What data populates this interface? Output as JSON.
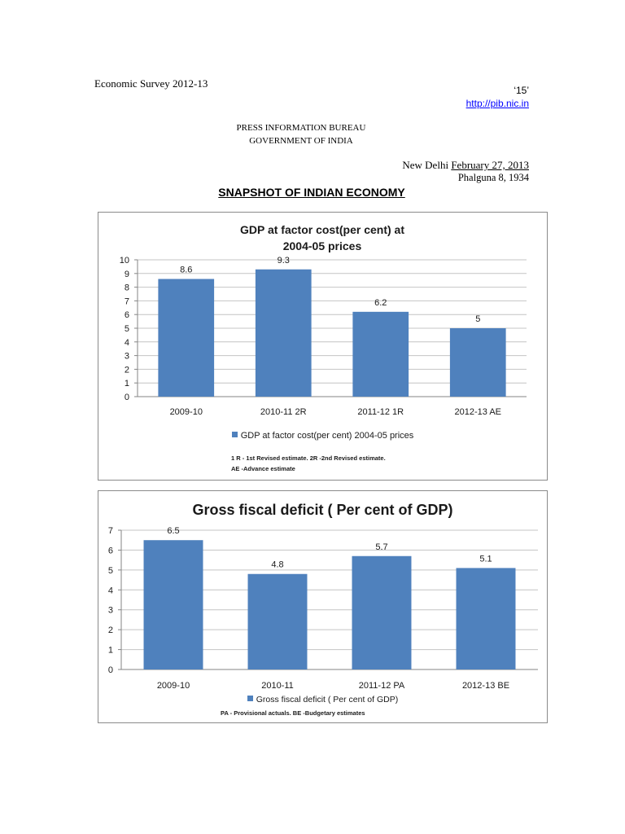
{
  "header": {
    "publication": "Economic Survey 2012-13",
    "page_code": "‘15’",
    "website": "http://pib.nic.in",
    "bureau": "PRESS INFORMATION BUREAU",
    "government": "GOVERNMENT OF INDIA",
    "place": "New Delhi",
    "date": "February 27, 2013",
    "saka_date": "Phalguna 8, 1934",
    "heading": "SNAPSHOT OF INDIAN ECONOMY"
  },
  "colors": {
    "bar": "#4F81BD",
    "link": "#0000FF"
  },
  "chart_data": [
    {
      "type": "bar",
      "title": "GDP at factor cost(per cent) at 2004-05 prices",
      "categories": [
        "2009-10",
        "2010-11 2R",
        "2011-12 1R",
        "2012-13 AE"
      ],
      "series": [
        {
          "name": "GDP at factor cost(per cent) 2004-05 prices",
          "values": [
            8.6,
            9.3,
            6.2,
            5
          ]
        }
      ],
      "ylim": [
        0,
        10
      ],
      "yticks": [
        0,
        1,
        2,
        3,
        4,
        5,
        6,
        7,
        8,
        9,
        10
      ],
      "grid": true,
      "legend": "bottom",
      "notes": [
        "1 R - 1st Revised estimate. 2R -2nd Revised estimate.",
        "AE -Advance estimate"
      ]
    },
    {
      "type": "bar",
      "title": "Gross fiscal deficit ( Per cent of GDP)",
      "categories": [
        "2009-10",
        "2010-11",
        "2011-12 PA",
        "2012-13 BE"
      ],
      "series": [
        {
          "name": "Gross fiscal deficit ( Per cent of GDP)",
          "values": [
            6.5,
            4.8,
            5.7,
            5.1
          ]
        }
      ],
      "ylim": [
        0,
        7
      ],
      "yticks": [
        0,
        1,
        2,
        3,
        4,
        5,
        6,
        7
      ],
      "grid": true,
      "legend": "bottom",
      "notes": [
        "PA - Provisional actuals. BE -Budgetary estimates"
      ]
    }
  ]
}
